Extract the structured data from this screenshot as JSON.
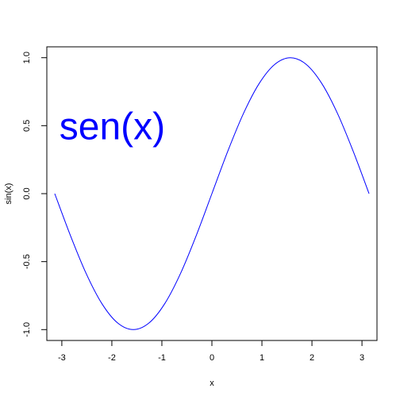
{
  "chart_data": {
    "type": "line",
    "title": "",
    "xlabel": "x",
    "ylabel": "sin(x)",
    "xlim": [
      -3.3,
      3.3
    ],
    "ylim": [
      -1.08,
      1.08
    ],
    "x_ticks": [
      -3,
      -2,
      -1,
      0,
      1,
      2,
      3
    ],
    "y_ticks": [
      -1.0,
      -0.5,
      0.0,
      0.5,
      1.0
    ],
    "x_tick_labels": [
      "-3",
      "-2",
      "-1",
      "0",
      "1",
      "2",
      "3"
    ],
    "y_tick_labels": [
      "-1.0",
      "-0.5",
      "0.0",
      "0.5",
      "1.0"
    ],
    "grid": false,
    "series": [
      {
        "color": "#0000ff",
        "x": [
          -3.1416,
          -2.8274,
          -2.5133,
          -2.1991,
          -1.885,
          -1.5708,
          -1.2566,
          -0.9425,
          -0.6283,
          -0.3142,
          0.0,
          0.3142,
          0.6283,
          0.9425,
          1.2566,
          1.5708,
          1.885,
          2.1991,
          2.5133,
          2.8274,
          3.1416
        ],
        "y": [
          0.0,
          -0.309,
          -0.5878,
          -0.809,
          -0.9511,
          -1.0,
          -0.9511,
          -0.809,
          -0.5878,
          -0.309,
          0.0,
          0.309,
          0.5878,
          0.809,
          0.9511,
          1.0,
          0.9511,
          0.809,
          0.5878,
          0.309,
          0.0
        ]
      }
    ],
    "annotations": [
      {
        "text": "sen(x)",
        "x": -3.05,
        "y": 0.5,
        "color": "#0000ff"
      }
    ]
  }
}
